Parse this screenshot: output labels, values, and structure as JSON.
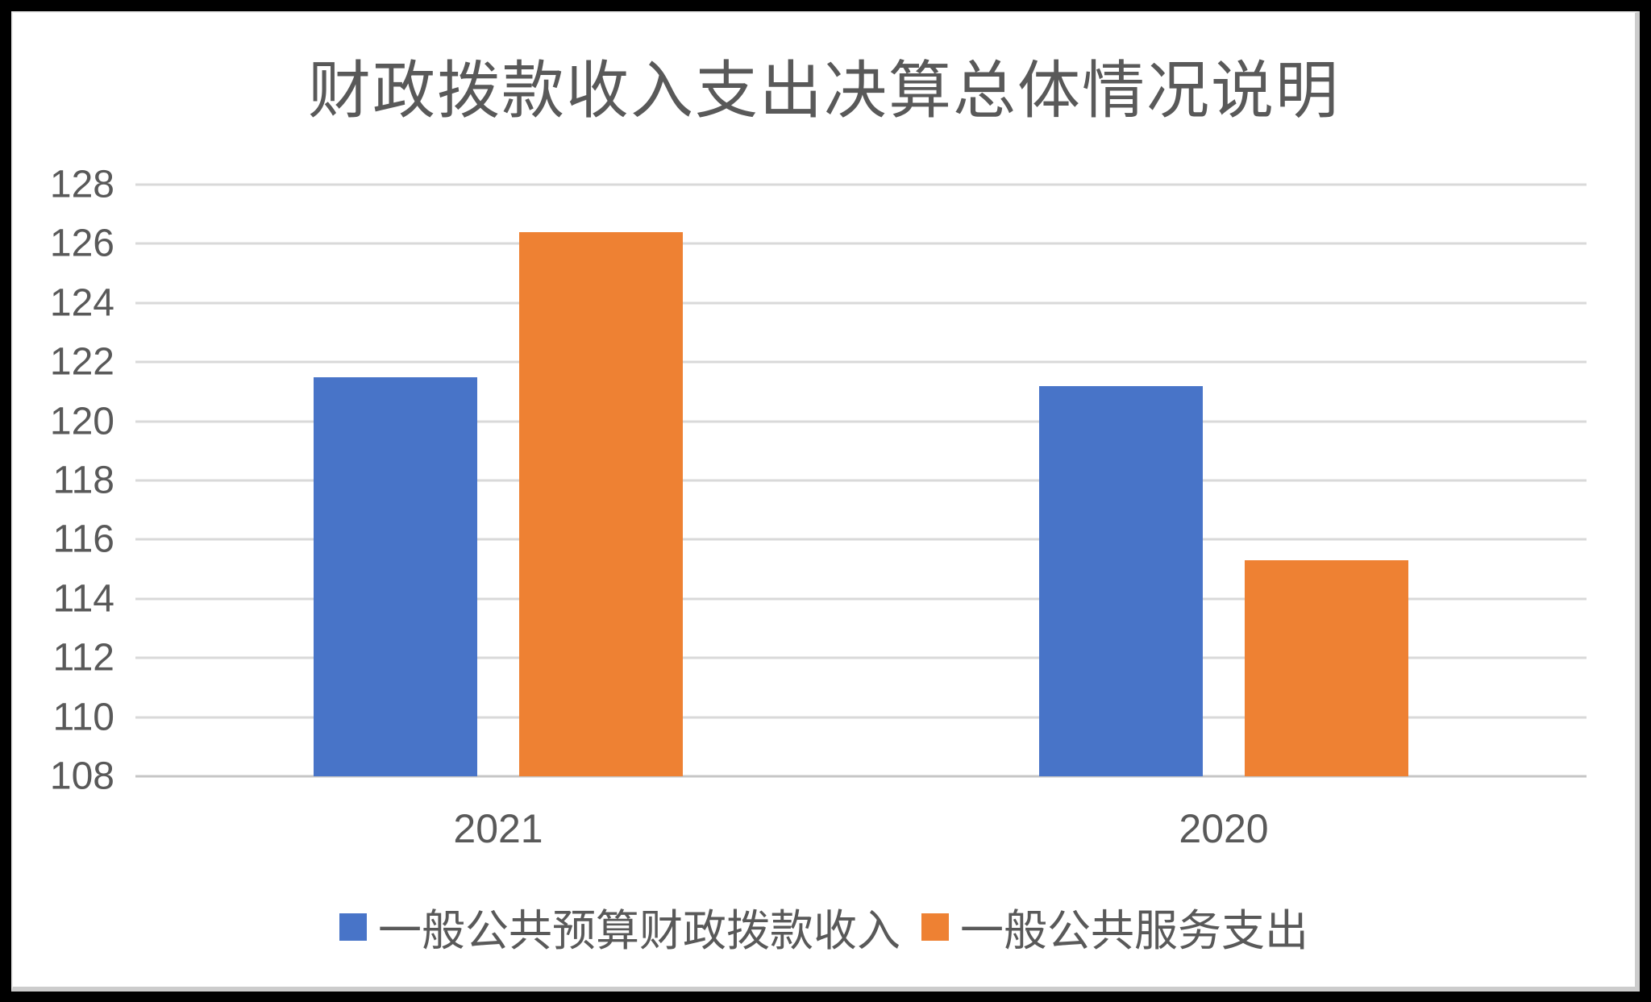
{
  "window": {
    "background": "#000000",
    "card_background": "#ffffff"
  },
  "chart_data": {
    "type": "bar",
    "title": "财政拨款收入支出决算总体情况说明",
    "categories": [
      "2021",
      "2020"
    ],
    "series": [
      {
        "name": "一般公共预算财政拨款收入",
        "color": "#4874C8",
        "values": [
          121.5,
          121.2
        ]
      },
      {
        "name": "一般公共服务支出",
        "color": "#EE8133",
        "values": [
          126.4,
          115.3
        ]
      }
    ],
    "xlabel": "",
    "ylabel": "",
    "ylim": [
      108,
      128
    ],
    "ytick_step": 2,
    "yticks": [
      128,
      126,
      124,
      122,
      120,
      118,
      116,
      114,
      112,
      110,
      108
    ],
    "grid": true,
    "legend_position": "bottom",
    "colors": {
      "gridline": "#d9d9d9",
      "axis_line": "#c6c6c6",
      "text": "#595959",
      "title": "#595959"
    }
  }
}
